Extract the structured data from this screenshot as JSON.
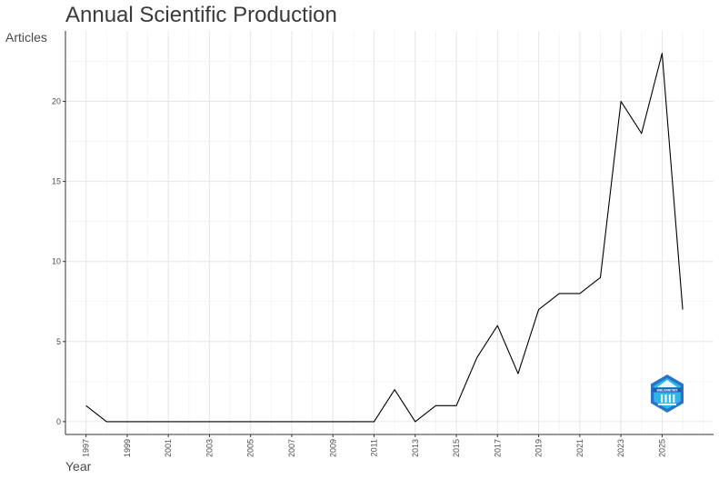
{
  "chart_data": {
    "type": "line",
    "title": "Annual Scientific Production",
    "xlabel": "Year",
    "ylabel": "Articles",
    "x": [
      1997,
      1998,
      1999,
      2000,
      2001,
      2002,
      2003,
      2004,
      2005,
      2006,
      2007,
      2008,
      2009,
      2010,
      2011,
      2012,
      2013,
      2014,
      2015,
      2016,
      2017,
      2018,
      2019,
      2020,
      2021,
      2022,
      2023,
      2024,
      2025,
      2026
    ],
    "series": [
      {
        "values": [
          1,
          0,
          0,
          0,
          0,
          0,
          0,
          0,
          0,
          0,
          0,
          0,
          0,
          0,
          0,
          2,
          0,
          1,
          1,
          4,
          6,
          3,
          7,
          8,
          8,
          9,
          20,
          18,
          23,
          7
        ]
      }
    ],
    "x_ticks": [
      "1997",
      "1999",
      "2001",
      "2003",
      "2005",
      "2007",
      "2009",
      "2011",
      "2013",
      "2015",
      "2017",
      "2019",
      "2021",
      "2023",
      "2025"
    ],
    "y_ticks": [
      "0",
      "5",
      "10",
      "15",
      "20"
    ],
    "xlim": [
      1996,
      2027.5
    ],
    "ylim": [
      -0.8,
      24.4
    ],
    "grid": true,
    "line_color": "#000000"
  },
  "logo": {
    "name": "bibliometrix-logo",
    "text": "BIBLIOMETRIX",
    "color": "#2a7fd4"
  }
}
